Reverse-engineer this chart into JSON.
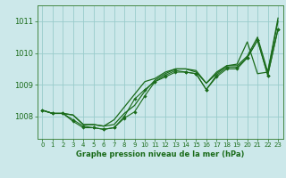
{
  "background_color": "#cce8ea",
  "grid_color": "#99cccc",
  "line_color": "#1a6b1a",
  "title": "Graphe pression niveau de la mer (hPa)",
  "xlim": [
    -0.5,
    23.5
  ],
  "ylim": [
    1007.3,
    1011.5
  ],
  "yticks": [
    1008,
    1009,
    1010,
    1011
  ],
  "xticks": [
    0,
    1,
    2,
    3,
    4,
    5,
    6,
    7,
    8,
    9,
    10,
    11,
    12,
    13,
    14,
    15,
    16,
    17,
    18,
    19,
    20,
    21,
    22,
    23
  ],
  "series_no_marker": [
    [
      1008.2,
      1008.1,
      1008.1,
      1008.05,
      1007.75,
      1007.75,
      1007.7,
      1007.9,
      1008.3,
      1008.7,
      1009.1,
      1009.2,
      1009.4,
      1009.5,
      1009.5,
      1009.45,
      1009.05,
      1009.4,
      1009.6,
      1009.65,
      1010.35,
      1009.35,
      1009.4,
      1011.1
    ],
    [
      1008.2,
      1008.1,
      1008.1,
      1008.05,
      1007.75,
      1007.75,
      1007.7,
      1007.75,
      1008.1,
      1008.35,
      1008.8,
      1009.15,
      1009.35,
      1009.5,
      1009.5,
      1009.4,
      1009.05,
      1009.35,
      1009.6,
      1009.6,
      1009.9,
      1010.5,
      1009.4,
      1011.0
    ]
  ],
  "series_with_marker": [
    [
      1008.2,
      1008.1,
      1008.1,
      1007.9,
      1007.7,
      1007.65,
      1007.6,
      1007.65,
      1008.0,
      1008.55,
      1008.85,
      1009.1,
      1009.3,
      1009.45,
      1009.4,
      1009.35,
      1008.85,
      1009.3,
      1009.55,
      1009.55,
      1009.85,
      1010.4,
      1009.3,
      1010.75
    ],
    [
      1008.2,
      1008.1,
      1008.1,
      1007.85,
      1007.65,
      1007.65,
      1007.6,
      1007.65,
      1007.95,
      1008.15,
      1008.65,
      1009.1,
      1009.25,
      1009.4,
      1009.4,
      1009.35,
      1008.85,
      1009.25,
      1009.5,
      1009.5,
      1009.85,
      1010.4,
      1009.3,
      1010.75
    ]
  ]
}
